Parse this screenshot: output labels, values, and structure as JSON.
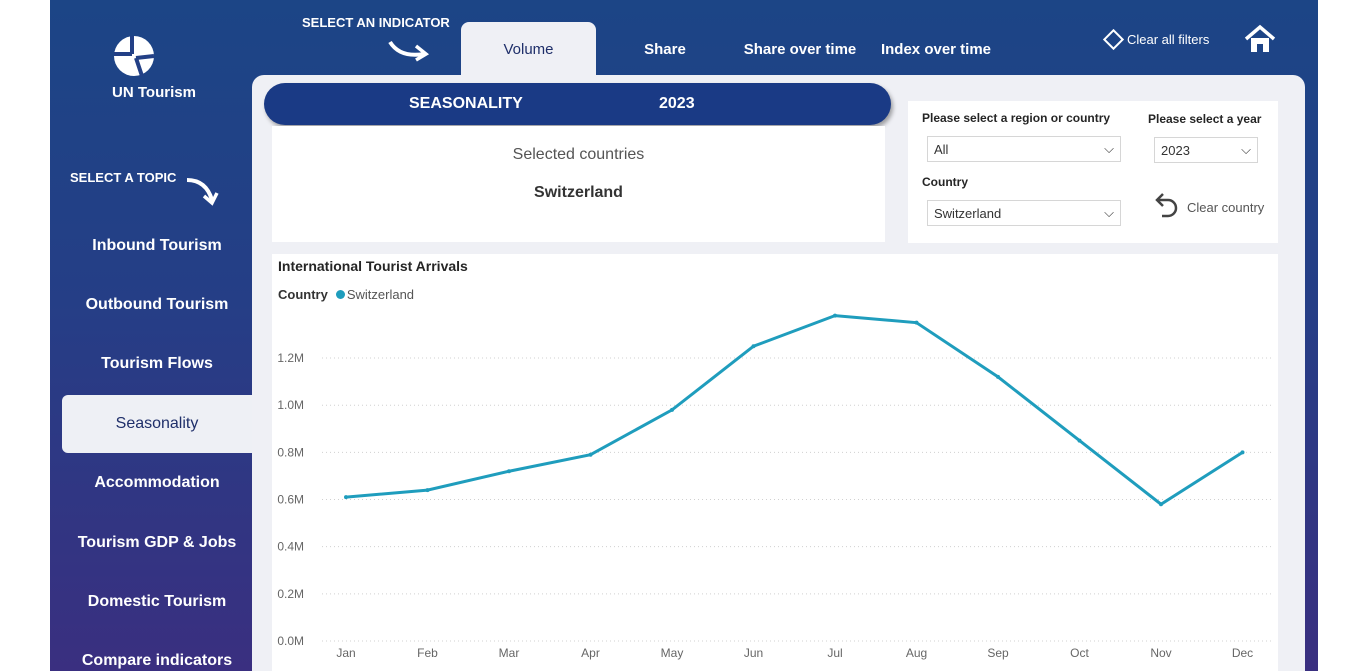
{
  "brand": {
    "name": "UN Tourism"
  },
  "labels": {
    "select_indicator": "SELECT AN INDICATOR",
    "select_topic": "SELECT A TOPIC"
  },
  "tabs": [
    {
      "label": "Volume"
    },
    {
      "label": "Share"
    },
    {
      "label": "Share over time"
    },
    {
      "label": "Index over time"
    }
  ],
  "header": {
    "clear_filters": "Clear all filters"
  },
  "sidebar": {
    "items": [
      {
        "label": "Inbound Tourism"
      },
      {
        "label": "Outbound Tourism"
      },
      {
        "label": "Tourism Flows"
      },
      {
        "label": "Seasonality"
      },
      {
        "label": "Accommodation"
      },
      {
        "label": "Tourism GDP & Jobs"
      },
      {
        "label": "Domestic Tourism"
      },
      {
        "label": "Compare indicators"
      }
    ]
  },
  "banner": {
    "title": "SEASONALITY",
    "year": "2023"
  },
  "selected": {
    "heading": "Selected countries",
    "value": "Switzerland"
  },
  "filters": {
    "region_label": "Please select a region or country",
    "region_value": "All",
    "year_label": "Please select a year",
    "year_value": "2023",
    "country_label": "Country",
    "country_value": "Switzerland",
    "clear_country": "Clear country"
  },
  "colors": {
    "line": "#1f9dbd",
    "navy": "#1a3a85"
  },
  "chart_data": {
    "type": "line",
    "title": "International Tourist Arrivals",
    "legend_title": "Country",
    "legend_position": "top-left",
    "categories": [
      "Jan",
      "Feb",
      "Mar",
      "Apr",
      "May",
      "Jun",
      "Jul",
      "Aug",
      "Sep",
      "Oct",
      "Nov",
      "Dec"
    ],
    "series": [
      {
        "name": "Switzerland",
        "values": [
          0.61,
          0.64,
          0.72,
          0.79,
          0.98,
          1.25,
          1.38,
          1.35,
          1.12,
          0.85,
          0.58,
          0.8
        ]
      }
    ],
    "yticks": [
      "0.0M",
      "0.2M",
      "0.4M",
      "0.6M",
      "0.8M",
      "1.0M",
      "1.2M"
    ],
    "ylim": [
      0,
      1.4
    ],
    "grid": true,
    "unit": "M"
  }
}
